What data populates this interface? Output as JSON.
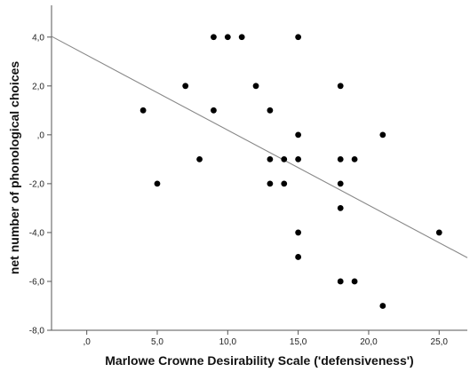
{
  "chart_data": {
    "type": "scatter",
    "title": "",
    "xlabel": "Marlowe Crowne Desirability Scale ('defensiveness')",
    "ylabel": "net number of phonological choices",
    "xlim": [
      -2.5,
      27
    ],
    "ylim": [
      -8,
      5.3
    ],
    "x_ticks": [
      0,
      5,
      10,
      15,
      20,
      25
    ],
    "x_tick_labels": [
      ",0",
      "5,0",
      "10,0",
      "15,0",
      "20,0",
      "25,0"
    ],
    "y_ticks": [
      -8,
      -6,
      -4,
      -2,
      0,
      2,
      4
    ],
    "y_tick_labels": [
      "-8,0",
      "-6,0",
      "-4,0",
      "-2,0",
      ",0",
      "2,0",
      "4,0"
    ],
    "grid": false,
    "points": [
      {
        "x": 4,
        "y": 1
      },
      {
        "x": 5,
        "y": -2
      },
      {
        "x": 7,
        "y": 2
      },
      {
        "x": 8,
        "y": -1
      },
      {
        "x": 9,
        "y": 4
      },
      {
        "x": 9,
        "y": 1
      },
      {
        "x": 10,
        "y": 4
      },
      {
        "x": 11,
        "y": 4
      },
      {
        "x": 12,
        "y": 2
      },
      {
        "x": 13,
        "y": 1
      },
      {
        "x": 13,
        "y": -1
      },
      {
        "x": 13,
        "y": -2
      },
      {
        "x": 14,
        "y": -1
      },
      {
        "x": 14,
        "y": -2
      },
      {
        "x": 15,
        "y": 4
      },
      {
        "x": 15,
        "y": 0
      },
      {
        "x": 15,
        "y": -1
      },
      {
        "x": 15,
        "y": -4
      },
      {
        "x": 15,
        "y": -5
      },
      {
        "x": 18,
        "y": 2
      },
      {
        "x": 18,
        "y": -1
      },
      {
        "x": 18,
        "y": -2
      },
      {
        "x": 18,
        "y": -3
      },
      {
        "x": 18,
        "y": -6
      },
      {
        "x": 19,
        "y": -1
      },
      {
        "x": 19,
        "y": -6
      },
      {
        "x": 21,
        "y": 0
      },
      {
        "x": 21,
        "y": -7
      },
      {
        "x": 25,
        "y": -4
      }
    ],
    "fit_line": {
      "x": [
        -2.5,
        27
      ],
      "y": [
        4.03,
        -5.03
      ]
    },
    "colors": {
      "point": "#000000",
      "line": "#888888",
      "axis": "#555555"
    }
  }
}
